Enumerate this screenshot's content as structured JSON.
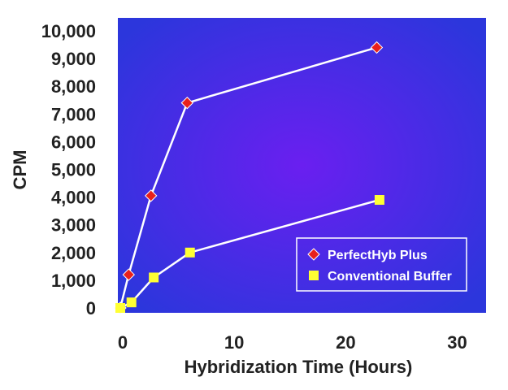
{
  "chart_data": {
    "type": "line",
    "xlabel": "Hybridization Time (Hours)",
    "ylabel": "CPM",
    "xlim": [
      0,
      35
    ],
    "ylim": [
      0,
      10500
    ],
    "xticks": [
      0,
      10,
      20,
      30
    ],
    "xtick_labels": [
      "0",
      "10",
      "20",
      "30"
    ],
    "yticks": [
      0,
      1000,
      2000,
      3000,
      4000,
      5000,
      6000,
      7000,
      8000,
      9000,
      10000
    ],
    "ytick_labels": [
      "0",
      "1,000",
      "2,000",
      "3,000",
      "4,000",
      "5,000",
      "6,000",
      "7,000",
      "8,000",
      "9,000",
      "10,000"
    ],
    "grid": false,
    "legend_position": "bottom-right",
    "plot_background": {
      "center": "#6a1ff0",
      "edge": "#2c36dc"
    },
    "series": [
      {
        "name": "PerfectHyb Plus",
        "marker": "diamond",
        "marker_color": "#e8201c",
        "line_color": "#ffffff",
        "x": [
          0,
          0.75,
          2.75,
          6,
          23
        ],
        "y": [
          0,
          1200,
          4050,
          7400,
          9400
        ]
      },
      {
        "name": "Conventional Buffer",
        "marker": "square",
        "marker_color": "#ffff33",
        "line_color": "#ffffff",
        "x": [
          0,
          1,
          3,
          6.25,
          23.25
        ],
        "y": [
          0,
          200,
          1100,
          2000,
          3900
        ]
      }
    ]
  }
}
